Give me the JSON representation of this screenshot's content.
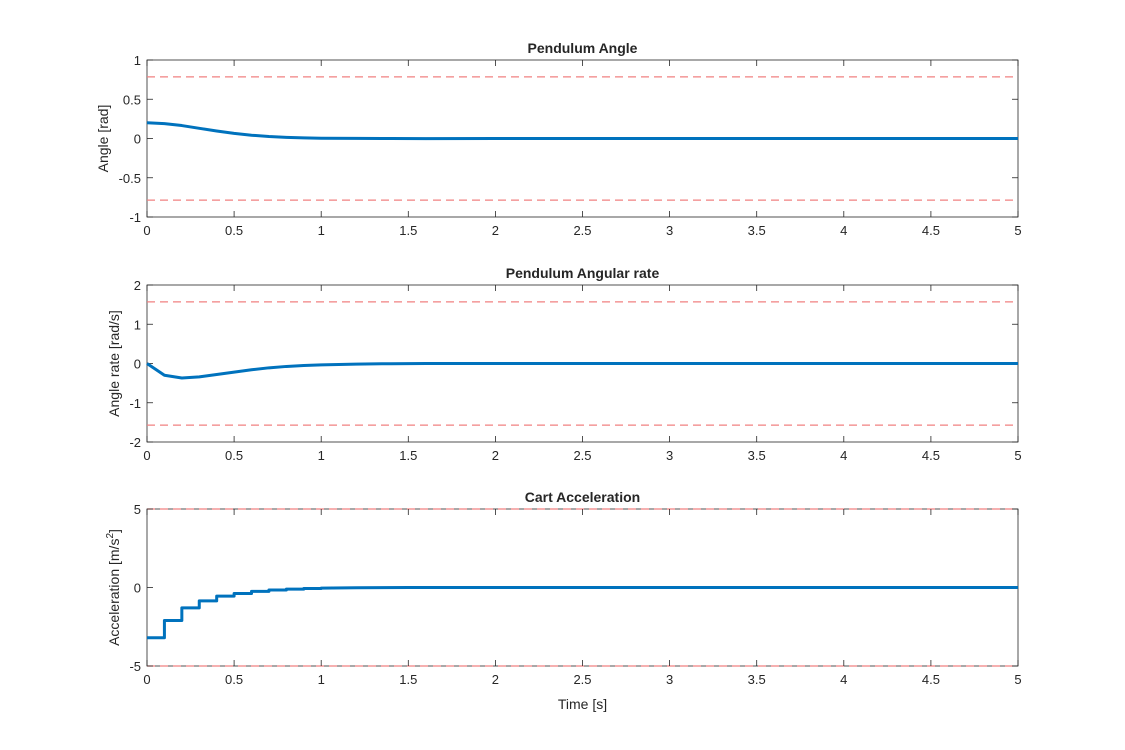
{
  "colors": {
    "series": "#0072BD",
    "limits": "#F08080",
    "axes": "#262626",
    "background": "#ffffff"
  },
  "chart_data": [
    {
      "type": "line",
      "title": "Pendulum Angle",
      "xlabel": "",
      "ylabel": "Angle [rad]",
      "xlim": [
        0,
        5
      ],
      "ylim": [
        -1,
        1
      ],
      "xticks": [
        0,
        0.5,
        1,
        1.5,
        2,
        2.5,
        3,
        3.5,
        4,
        4.5,
        5
      ],
      "xtick_labels": [
        "0",
        "0.5",
        "1",
        "1.5",
        "2",
        "2.5",
        "3",
        "3.5",
        "4",
        "4.5",
        "5"
      ],
      "yticks": [
        -1,
        -0.5,
        0,
        0.5,
        1
      ],
      "ytick_labels": [
        "-1",
        "-0.5",
        "0",
        "0.5",
        "1"
      ],
      "grid": false,
      "limits": [
        0.785,
        -0.785
      ],
      "series": [
        {
          "x": [
            0,
            0.1,
            0.2,
            0.3,
            0.4,
            0.5,
            0.6,
            0.7,
            0.8,
            0.9,
            1.0,
            1.2,
            1.4,
            1.6,
            2.0,
            3.0,
            4.0,
            5.0
          ],
          "values": [
            0.2,
            0.19,
            0.165,
            0.13,
            0.095,
            0.065,
            0.042,
            0.026,
            0.015,
            0.008,
            0.004,
            0.001,
            0.0,
            -0.002,
            0.0,
            0.0,
            0.0,
            0.0
          ]
        }
      ]
    },
    {
      "type": "line",
      "title": "Pendulum Angular rate",
      "xlabel": "",
      "ylabel": "Angle rate [rad/s]",
      "xlim": [
        0,
        5
      ],
      "ylim": [
        -2,
        2
      ],
      "xticks": [
        0,
        0.5,
        1,
        1.5,
        2,
        2.5,
        3,
        3.5,
        4,
        4.5,
        5
      ],
      "xtick_labels": [
        "0",
        "0.5",
        "1",
        "1.5",
        "2",
        "2.5",
        "3",
        "3.5",
        "4",
        "4.5",
        "5"
      ],
      "yticks": [
        -2,
        -1,
        0,
        1,
        2
      ],
      "ytick_labels": [
        "-2",
        "-1",
        "0",
        "1",
        "2"
      ],
      "grid": false,
      "limits": [
        1.57,
        -1.57
      ],
      "series": [
        {
          "x": [
            0,
            0.1,
            0.2,
            0.3,
            0.4,
            0.5,
            0.6,
            0.7,
            0.8,
            0.9,
            1.0,
            1.2,
            1.4,
            1.6,
            2.0,
            3.0,
            4.0,
            5.0
          ],
          "values": [
            0,
            -0.3,
            -0.37,
            -0.34,
            -0.28,
            -0.22,
            -0.16,
            -0.11,
            -0.075,
            -0.05,
            -0.035,
            -0.015,
            -0.005,
            0.0,
            0.0,
            0.0,
            0.0,
            0.0
          ]
        }
      ]
    },
    {
      "type": "line",
      "title": "Cart Acceleration",
      "xlabel": "Time [s]",
      "ylabel": "Acceleration [m/s",
      "ylabel_superscript": "2",
      "ylabel_suffix": "]",
      "xlim": [
        0,
        5
      ],
      "ylim": [
        -5,
        5
      ],
      "xticks": [
        0,
        0.5,
        1,
        1.5,
        2,
        2.5,
        3,
        3.5,
        4,
        4.5,
        5
      ],
      "xtick_labels": [
        "0",
        "0.5",
        "1",
        "1.5",
        "2",
        "2.5",
        "3",
        "3.5",
        "4",
        "4.5",
        "5"
      ],
      "yticks": [
        -5,
        0,
        5
      ],
      "ytick_labels": [
        "-5",
        "0",
        "5"
      ],
      "grid": false,
      "limits": [
        5,
        -5
      ],
      "series": [
        {
          "x": [
            0,
            0.1,
            0.1,
            0.2,
            0.2,
            0.3,
            0.3,
            0.4,
            0.4,
            0.5,
            0.5,
            0.6,
            0.6,
            0.7,
            0.7,
            0.8,
            0.8,
            0.9,
            0.9,
            1.0,
            1.0,
            1.2,
            1.5,
            5.0
          ],
          "values": [
            -3.2,
            -3.2,
            -2.1,
            -2.1,
            -1.3,
            -1.3,
            -0.85,
            -0.85,
            -0.55,
            -0.55,
            -0.38,
            -0.38,
            -0.25,
            -0.25,
            -0.16,
            -0.16,
            -0.1,
            -0.1,
            -0.06,
            -0.06,
            -0.04,
            -0.02,
            0.0,
            0.0
          ]
        }
      ]
    }
  ]
}
